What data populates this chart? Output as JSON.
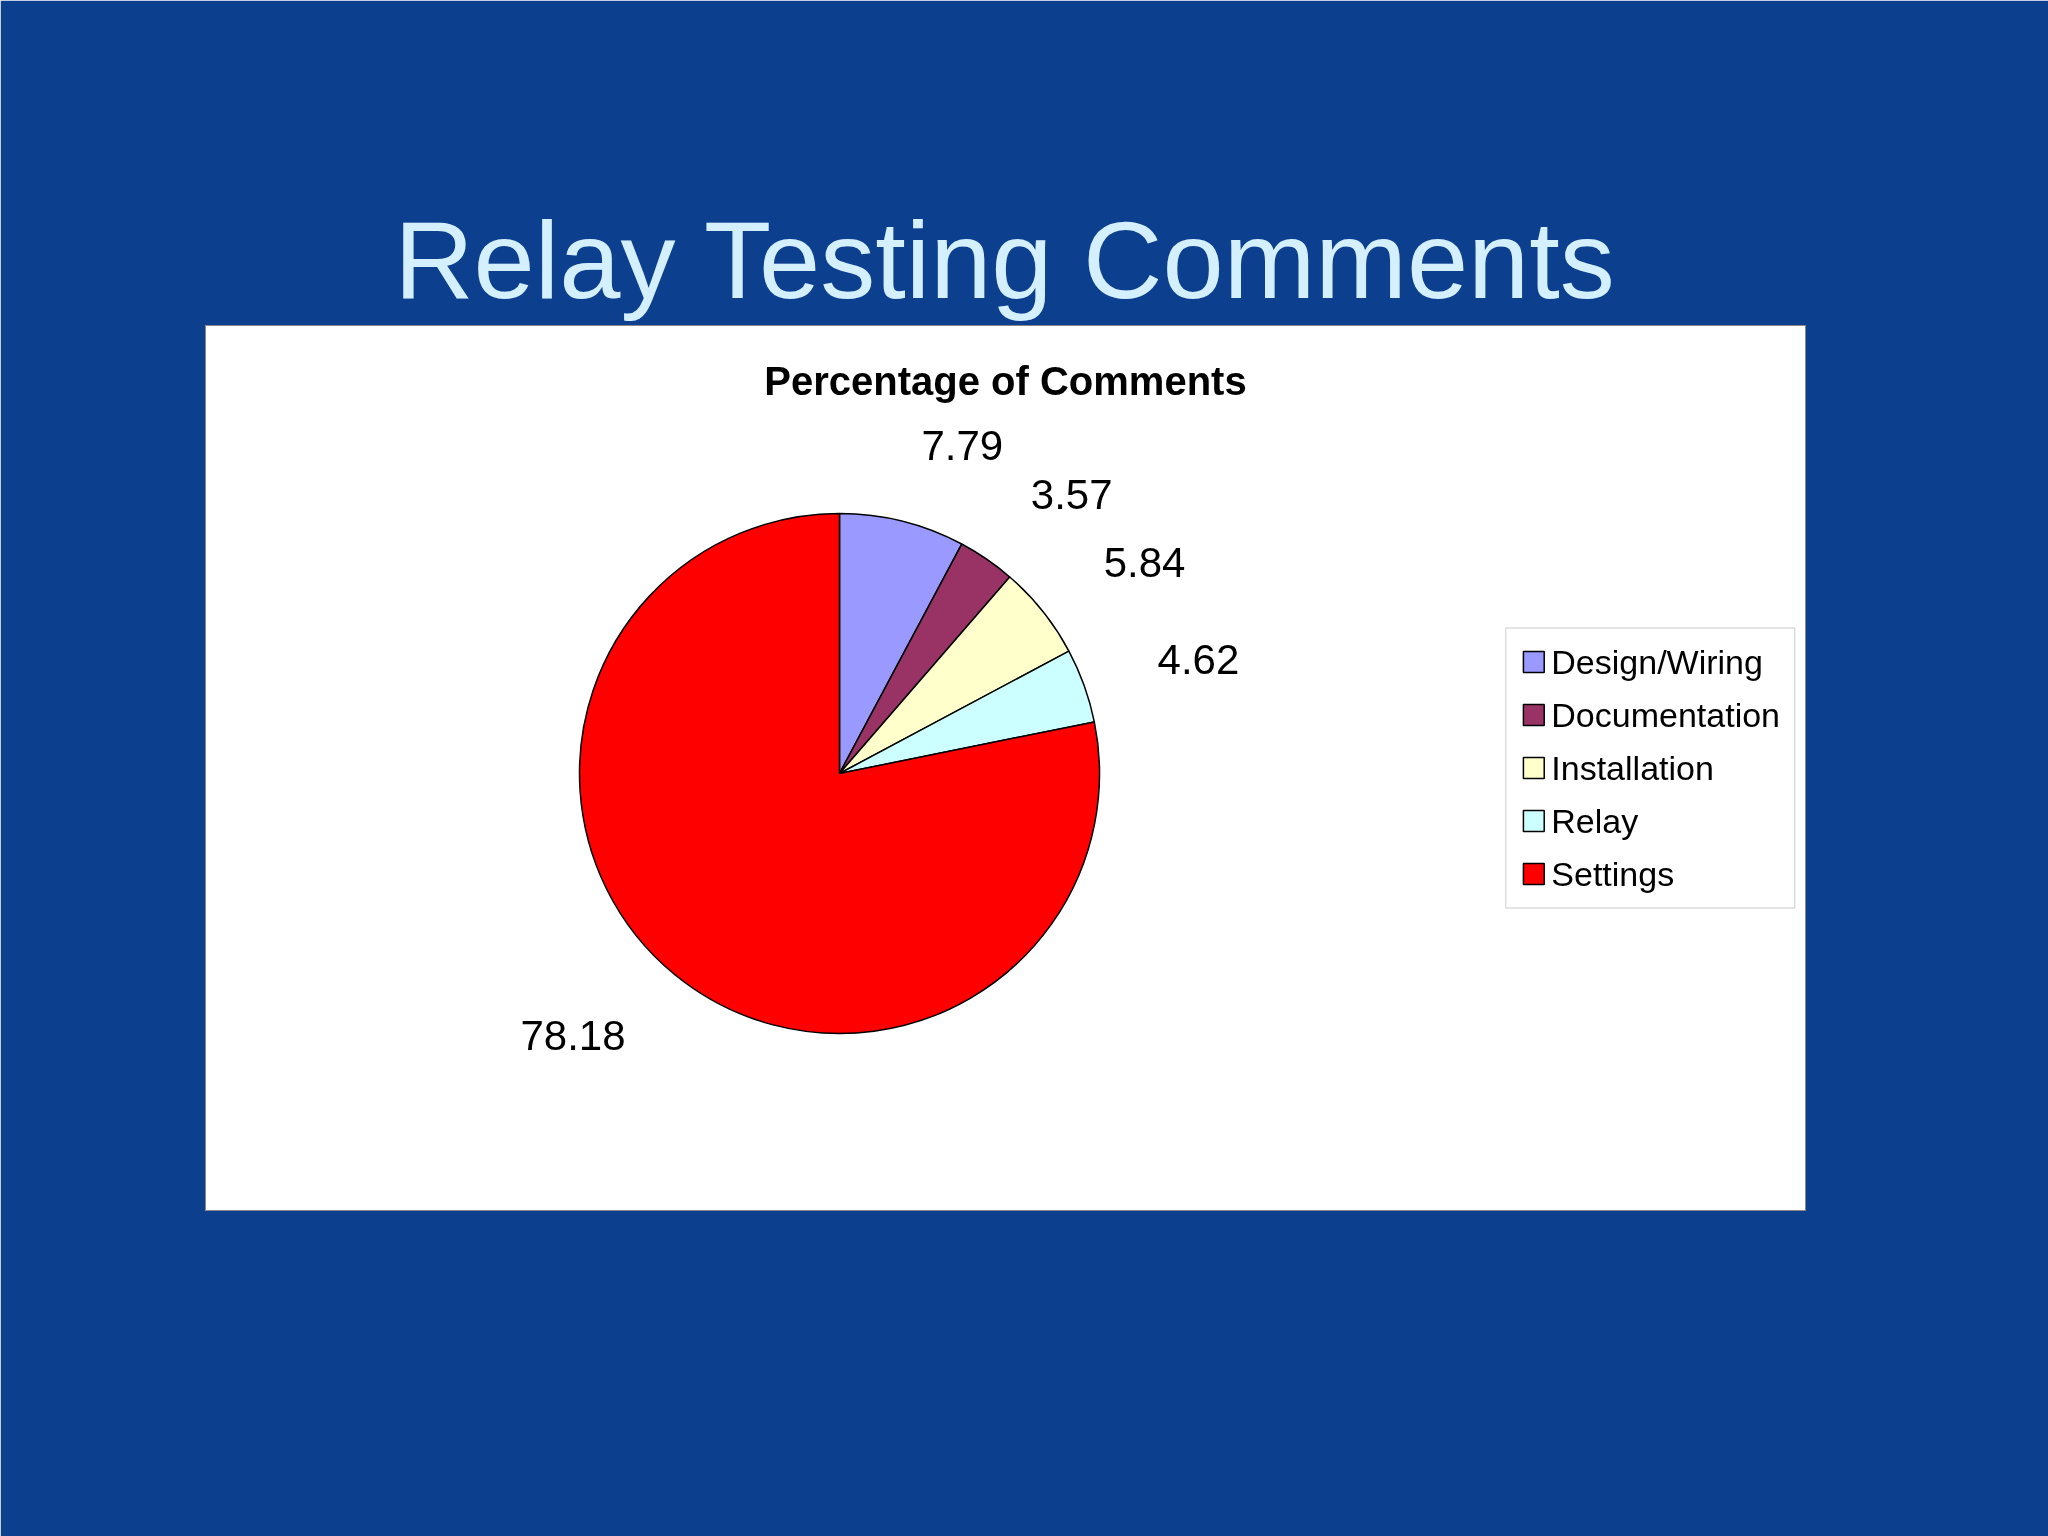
{
  "chart_data": {
    "type": "pie",
    "title": "Relay Testing Comments",
    "subtitle": "Percentage of Comments",
    "categories": [
      "Design/Wiring",
      "Documentation",
      "Installation",
      "Relay",
      "Settings"
    ],
    "values": [
      7.79,
      3.57,
      5.84,
      4.62,
      78.18
    ],
    "colors": [
      "#9999ff",
      "#993366",
      "#ffffcc",
      "#ccffff",
      "#ff0000"
    ],
    "data_labels": true,
    "legend": "right"
  }
}
